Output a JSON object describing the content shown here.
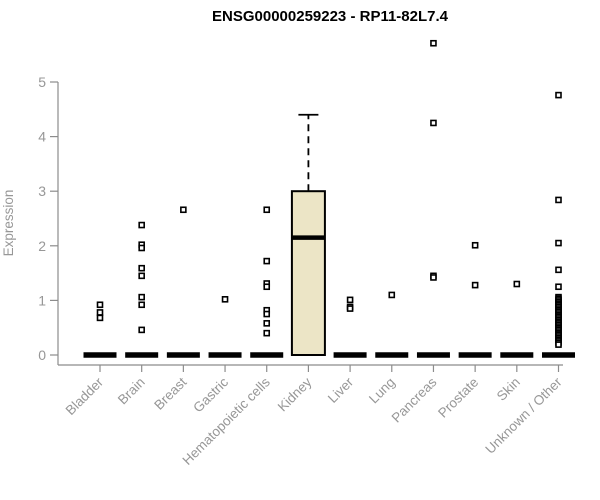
{
  "title": "ENSG00000259223 - RP11-82L7.4",
  "colors": {
    "background": "#ffffff",
    "axis_line": "#8c8c8c",
    "axis_text": "#979797",
    "data_color": "#000000",
    "box_fill": "#ece5c6",
    "point_fill": "#ffffff"
  },
  "chart_data": {
    "type": "boxplot",
    "title": "ENSG00000259223 - RP11-82L7.4",
    "xlabel": "",
    "ylabel": "Expression",
    "ylim": [
      0,
      5
    ],
    "yticks": [
      "0",
      "1",
      "2",
      "3",
      "4",
      "5"
    ],
    "grid": false,
    "legend": false,
    "marker": "open-square",
    "categories": [
      "Bladder",
      "Brain",
      "Breast",
      "Gastric",
      "Hematopoietic cells",
      "Kidney",
      "Liver",
      "Lung",
      "Pancreas",
      "Prostate",
      "Skin",
      "Unknown / Other"
    ],
    "boxes": [
      {
        "category": "Bladder",
        "whisker_low": 0,
        "q1": 0,
        "median": 0,
        "q3": 0,
        "whisker_high": 0,
        "outliers": [
          0.92,
          0.78,
          0.68
        ]
      },
      {
        "category": "Brain",
        "whisker_low": 0,
        "q1": 0,
        "median": 0,
        "q3": 0,
        "whisker_high": 0,
        "outliers": [
          2.38,
          2.02,
          1.96,
          1.59,
          1.45,
          1.06,
          0.92,
          0.46
        ]
      },
      {
        "category": "Breast",
        "whisker_low": 0,
        "q1": 0,
        "median": 0,
        "q3": 0,
        "whisker_high": 0,
        "outliers": [
          2.66
        ]
      },
      {
        "category": "Gastric",
        "whisker_low": 0,
        "q1": 0,
        "median": 0,
        "q3": 0,
        "whisker_high": 0,
        "outliers": [
          1.02
        ]
      },
      {
        "category": "Hematopoietic cells",
        "whisker_low": 0,
        "q1": 0,
        "median": 0,
        "q3": 0,
        "whisker_high": 0,
        "outliers": [
          2.66,
          1.72,
          1.31,
          1.25,
          0.82,
          0.75,
          0.58,
          0.4
        ]
      },
      {
        "category": "Kidney",
        "whisker_low": 0,
        "q1": 0,
        "median": 2.15,
        "q3": 3.0,
        "whisker_high": 4.4,
        "outliers": []
      },
      {
        "category": "Liver",
        "whisker_low": 0,
        "q1": 0,
        "median": 0,
        "q3": 0,
        "whisker_high": 0,
        "outliers": [
          1.01,
          0.88,
          0.85
        ]
      },
      {
        "category": "Lung",
        "whisker_low": 0,
        "q1": 0,
        "median": 0,
        "q3": 0,
        "whisker_high": 0,
        "outliers": [
          1.1
        ]
      },
      {
        "category": "Pancreas",
        "whisker_low": 0,
        "q1": 0,
        "median": 0,
        "q3": 0,
        "whisker_high": 0,
        "outliers": [
          5.71,
          4.25,
          1.45,
          1.42
        ]
      },
      {
        "category": "Prostate",
        "whisker_low": 0,
        "q1": 0,
        "median": 0,
        "q3": 0,
        "whisker_high": 0,
        "outliers": [
          2.01,
          1.28
        ]
      },
      {
        "category": "Skin",
        "whisker_low": 0,
        "q1": 0,
        "median": 0,
        "q3": 0,
        "whisker_high": 0,
        "outliers": [
          1.3
        ]
      },
      {
        "category": "Unknown / Other",
        "whisker_low": 0,
        "q1": 0,
        "median": 0,
        "q3": 0,
        "whisker_high": 0,
        "outliers": [
          4.76,
          2.84,
          2.05,
          1.56,
          1.25,
          1.06,
          1.03,
          1.0,
          0.97,
          0.94,
          0.91,
          0.88,
          0.85,
          0.82,
          0.79,
          0.76,
          0.73,
          0.7,
          0.67,
          0.64,
          0.61,
          0.58,
          0.55,
          0.52,
          0.49,
          0.46,
          0.43,
          0.4,
          0.37,
          0.34,
          0.31,
          0.28,
          0.25,
          0.22,
          0.19
        ]
      }
    ]
  }
}
